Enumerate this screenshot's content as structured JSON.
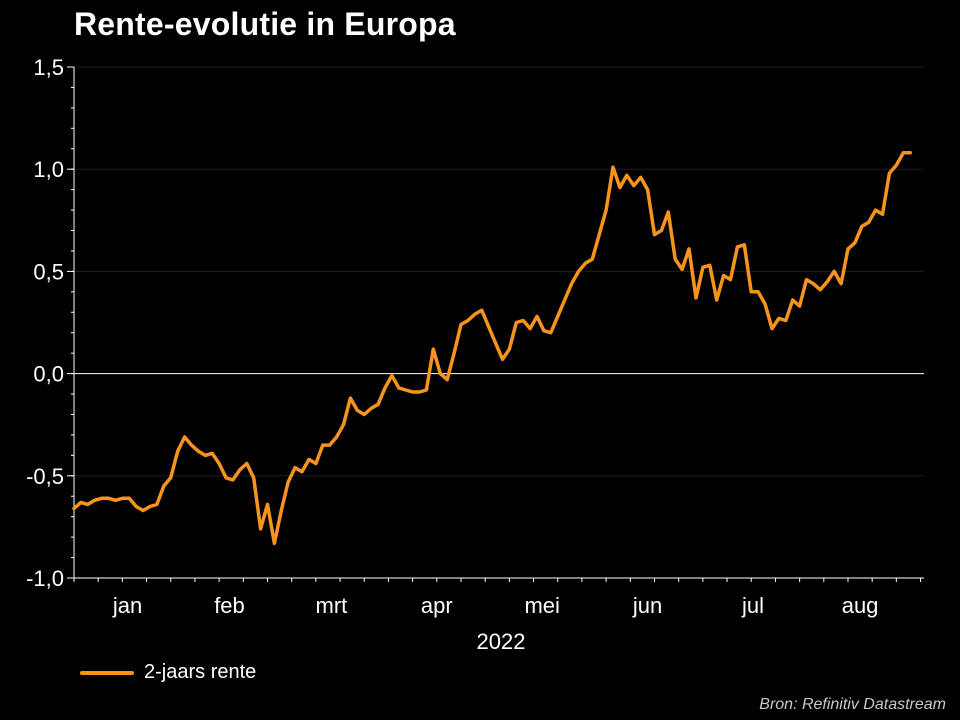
{
  "title": "Rente-evolutie in Europa",
  "source": "Bron: Refinitiv Datastream",
  "colors": {
    "background": "#000000",
    "line": "#f7941d",
    "axis": "#ffffff",
    "grid": "#1e1e1e"
  },
  "chart_data": {
    "type": "line",
    "title": "Rente-evolutie in Europa",
    "xlabel": "2022",
    "ylabel": "",
    "ylim": [
      -1.0,
      1.5
    ],
    "yticks": [
      -1.0,
      -0.5,
      0.0,
      0.5,
      1.0,
      1.5
    ],
    "ytick_labels": [
      "-1,0",
      "-0,5",
      "0,0",
      "0,5",
      "1,0",
      "1,5"
    ],
    "x_tick_labels": [
      "jan",
      "feb",
      "mrt",
      "apr",
      "mei",
      "jun",
      "jul",
      "aug"
    ],
    "x_year_label": "2022",
    "grid": true,
    "zero_line": true,
    "legend": "bottom-left",
    "series": [
      {
        "name": "2-jaars rente",
        "color": "#f7941d",
        "x": [
          "2022-01-01",
          "2022-01-03",
          "2022-01-05",
          "2022-01-07",
          "2022-01-09",
          "2022-01-11",
          "2022-01-13",
          "2022-01-15",
          "2022-01-17",
          "2022-01-19",
          "2022-01-21",
          "2022-01-23",
          "2022-01-25",
          "2022-01-27",
          "2022-01-29",
          "2022-01-31",
          "2022-02-02",
          "2022-02-04",
          "2022-02-06",
          "2022-02-08",
          "2022-02-10",
          "2022-02-12",
          "2022-02-14",
          "2022-02-16",
          "2022-02-18",
          "2022-02-20",
          "2022-02-22",
          "2022-02-24",
          "2022-02-26",
          "2022-02-28",
          "2022-03-02",
          "2022-03-04",
          "2022-03-06",
          "2022-03-08",
          "2022-03-10",
          "2022-03-12",
          "2022-03-14",
          "2022-03-16",
          "2022-03-18",
          "2022-03-20",
          "2022-03-22",
          "2022-03-24",
          "2022-03-26",
          "2022-03-28",
          "2022-03-30",
          "2022-04-01",
          "2022-04-03",
          "2022-04-05",
          "2022-04-07",
          "2022-04-09",
          "2022-04-11",
          "2022-04-13",
          "2022-04-15",
          "2022-04-17",
          "2022-04-19",
          "2022-04-21",
          "2022-04-23",
          "2022-04-25",
          "2022-04-27",
          "2022-04-29",
          "2022-05-01",
          "2022-05-03",
          "2022-05-05",
          "2022-05-07",
          "2022-05-09",
          "2022-05-11",
          "2022-05-13",
          "2022-05-15",
          "2022-05-17",
          "2022-05-19",
          "2022-05-21",
          "2022-05-23",
          "2022-05-25",
          "2022-05-27",
          "2022-05-29",
          "2022-05-31",
          "2022-06-02",
          "2022-06-04",
          "2022-06-06",
          "2022-06-08",
          "2022-06-10",
          "2022-06-12",
          "2022-06-14",
          "2022-06-16",
          "2022-06-18",
          "2022-06-20",
          "2022-06-22",
          "2022-06-24",
          "2022-06-26",
          "2022-06-28",
          "2022-06-30",
          "2022-07-02",
          "2022-07-04",
          "2022-07-06",
          "2022-07-08",
          "2022-07-10",
          "2022-07-12",
          "2022-07-14",
          "2022-07-16",
          "2022-07-18",
          "2022-07-20",
          "2022-07-22",
          "2022-07-24",
          "2022-07-26",
          "2022-07-28",
          "2022-07-30",
          "2022-08-01",
          "2022-08-03",
          "2022-08-05",
          "2022-08-07",
          "2022-08-09",
          "2022-08-11",
          "2022-08-13",
          "2022-08-15",
          "2022-08-17",
          "2022-08-19",
          "2022-08-21",
          "2022-08-23",
          "2022-08-25",
          "2022-08-27",
          "2022-08-29",
          "2022-08-31"
        ],
        "values": [
          -0.66,
          -0.63,
          -0.64,
          -0.62,
          -0.61,
          -0.61,
          -0.62,
          -0.61,
          -0.61,
          -0.65,
          -0.67,
          -0.65,
          -0.64,
          -0.55,
          -0.51,
          -0.38,
          -0.31,
          -0.35,
          -0.38,
          -0.4,
          -0.39,
          -0.44,
          -0.51,
          -0.52,
          -0.47,
          -0.44,
          -0.51,
          -0.76,
          -0.64,
          -0.83,
          -0.67,
          -0.53,
          -0.46,
          -0.48,
          -0.42,
          -0.44,
          -0.35,
          -0.35,
          -0.31,
          -0.25,
          -0.12,
          -0.18,
          -0.2,
          -0.17,
          -0.15,
          -0.07,
          -0.01,
          -0.07,
          -0.08,
          -0.09,
          -0.09,
          -0.08,
          0.12,
          0.0,
          -0.03,
          0.1,
          0.24,
          0.26,
          0.29,
          0.31,
          0.23,
          0.15,
          0.07,
          0.12,
          0.25,
          0.26,
          0.22,
          0.28,
          0.21,
          0.2,
          0.28,
          0.36,
          0.44,
          0.5,
          0.54,
          0.56,
          0.68,
          0.8,
          1.01,
          0.91,
          0.97,
          0.92,
          0.96,
          0.9,
          0.68,
          0.7,
          0.79,
          0.56,
          0.51,
          0.61,
          0.37,
          0.52,
          0.53,
          0.36,
          0.48,
          0.46,
          0.62,
          0.63,
          0.4,
          0.4,
          0.34,
          0.22,
          0.27,
          0.26,
          0.36,
          0.33,
          0.46,
          0.44,
          0.41,
          0.45,
          0.5,
          0.44,
          0.61,
          0.64,
          0.72,
          0.74,
          0.8,
          0.78,
          0.98,
          1.02,
          1.08,
          1.08
        ]
      }
    ]
  }
}
